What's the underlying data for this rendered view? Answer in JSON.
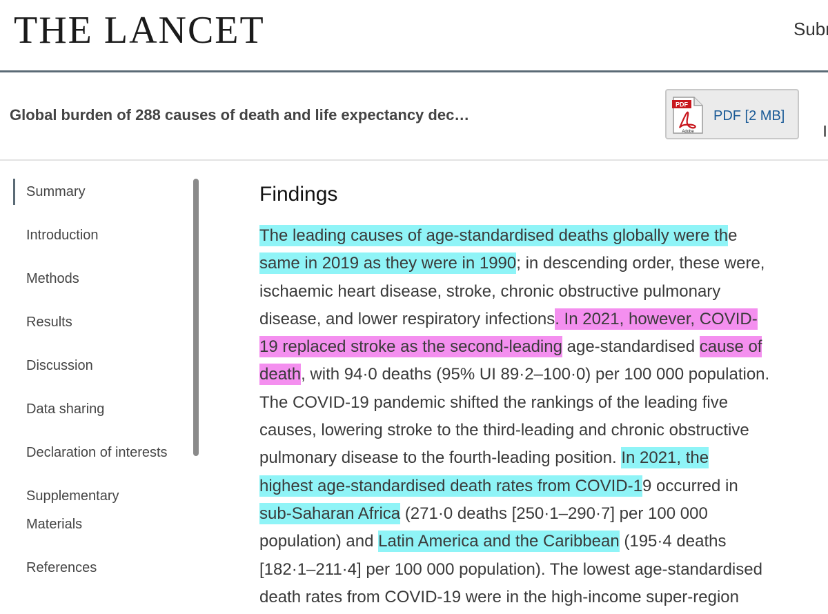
{
  "header": {
    "logo": "THE LANCET",
    "nav_submit": "Subr"
  },
  "article": {
    "title": "Global burden of 288 causes of death and life expectancy dec…",
    "pdf_label": "PDF [2 MB]",
    "pdf_icon_text": "PDF",
    "pdf_icon_brand": "Adobe"
  },
  "sidebar": {
    "items": [
      {
        "label": "Summary",
        "active": true
      },
      {
        "label": "Introduction"
      },
      {
        "label": "Methods"
      },
      {
        "label": "Results"
      },
      {
        "label": "Discussion"
      },
      {
        "label": "Data sharing"
      },
      {
        "label": "Declaration of interests"
      },
      {
        "label": "Supplementary"
      },
      {
        "label": "Materials"
      },
      {
        "label": "References"
      }
    ]
  },
  "main": {
    "heading": "Findings",
    "lines": [
      [
        {
          "t": "The leading causes of age-standardised deaths globally were th",
          "hl": "c"
        },
        {
          "t": "e"
        }
      ],
      [
        {
          "t": "same in 2019 as they were in 1990",
          "hl": "c"
        },
        {
          "t": "; in descending order, these were,"
        }
      ],
      [
        {
          "t": "ischaemic heart disease, stroke, chronic obstructive pulmonary"
        }
      ],
      [
        {
          "t": "disease, and lower respiratory infections"
        },
        {
          "t": ". In 2021, however, COVID-",
          "hl": "m"
        }
      ],
      [
        {
          "t": "19 replaced stroke as the second-leading",
          "hl": "m"
        },
        {
          "t": " age-standardised "
        },
        {
          "t": "cause of",
          "hl": "m"
        }
      ],
      [
        {
          "t": "death",
          "hl": "m"
        },
        {
          "t": ", with 94·0 deaths (95% UI 89·2–100·0) per 100 000 population."
        }
      ],
      [
        {
          "t": "The COVID-19 pandemic shifted the rankings of the leading five"
        }
      ],
      [
        {
          "t": "causes, lowering stroke to the third-leading and chronic obstructive"
        }
      ],
      [
        {
          "t": "pulmonary disease to the fourth-leading position. "
        },
        {
          "t": "In 2021, the",
          "hl": "c"
        }
      ],
      [
        {
          "t": "highest age-standardised death rates from COVID-1",
          "hl": "c"
        },
        {
          "t": "9 occurred in"
        }
      ],
      [
        {
          "t": "sub-Saharan Africa",
          "hl": "c"
        },
        {
          "t": " (271·0 deaths [250·1–290·7] per 100 000"
        }
      ],
      [
        {
          "t": "population) and "
        },
        {
          "t": "Latin America and the Caribbean",
          "hl": "c"
        },
        {
          "t": " (195·4 deaths"
        }
      ],
      [
        {
          "t": "[182·1–211·4] per 100 000 population). The lowest age-standardised"
        }
      ],
      [
        {
          "t": "death rates from COVID-19 were in the high-income super-region"
        }
      ]
    ]
  },
  "colors": {
    "highlight_cyan": "#8ff4f7",
    "highlight_magenta": "#f48fef",
    "pdf_link": "#1a5a96",
    "rule": "#5b6b76"
  }
}
